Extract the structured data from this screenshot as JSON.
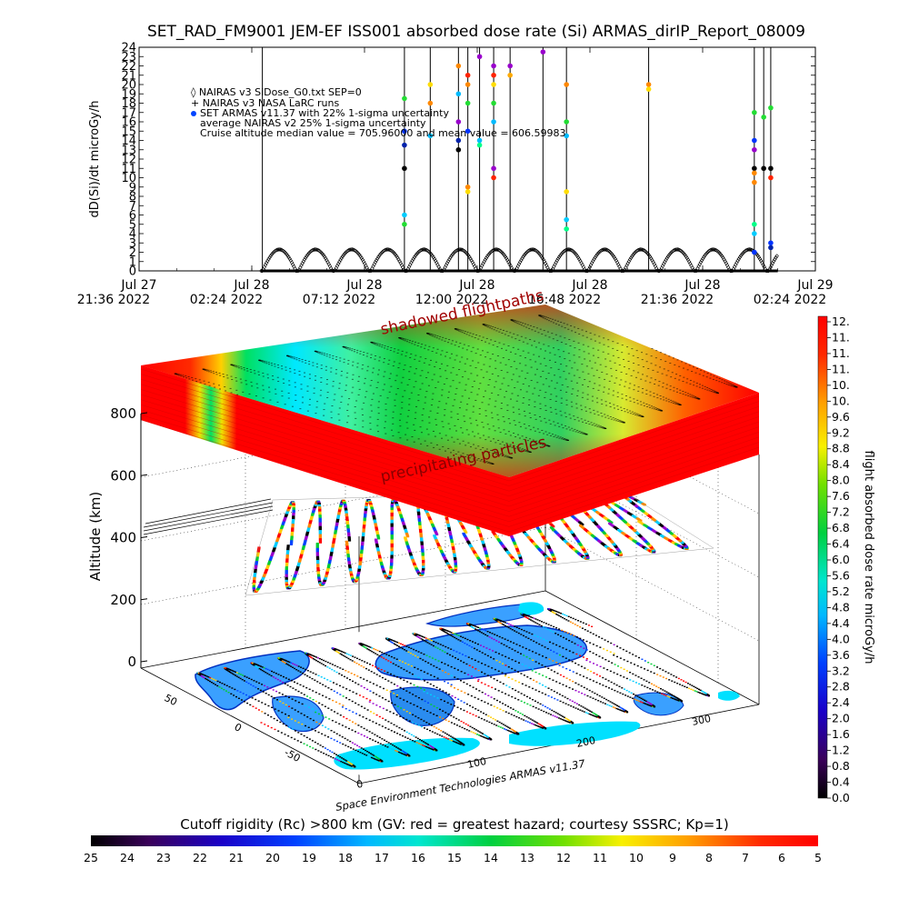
{
  "title": "SET_RAD_FM9001   JEM-EF ISS001 absorbed dose rate (Si) ARMAS_dirIP_Report_08009",
  "chart_data": [
    {
      "type": "scatter",
      "ylabel": "dD(Si)/dt microGy/h",
      "ylim": [
        0,
        24
      ],
      "yticks": [
        "0",
        "1",
        "2",
        "3",
        "4",
        "5",
        "6",
        "7",
        "8",
        "9",
        "10",
        "11",
        "12",
        "13",
        "14",
        "15",
        "16",
        "17",
        "18",
        "19",
        "20",
        "21",
        "22",
        "23",
        "24"
      ],
      "xticks": [
        {
          "line1": "Jul 27",
          "line2": "21:36 2022"
        },
        {
          "line1": "Jul 28",
          "line2": "02:24 2022"
        },
        {
          "line1": "Jul 28",
          "line2": "07:12 2022"
        },
        {
          "line1": "Jul 28",
          "line2": "12:00 2022"
        },
        {
          "line1": "Jul 28",
          "line2": "16:48 2022"
        },
        {
          "line1": "Jul 28",
          "line2": "21:36 2022"
        },
        {
          "line1": "Jul 29",
          "line2": "02:24 2022"
        }
      ],
      "legend": [
        "◊ NAIRAS v3 SiDose_G0.txt SEP=0",
        "+ NAIRAS v3 NASA LaRC runs",
        "SET ARMAS v11.37 with 22% 1-sigma uncertainty",
        "average NAIRAS v2 25% 1-sigma uncertainty",
        "Cruise altitude median value = 705.96000 and mean value = 606.59983"
      ],
      "legend_placement": "top-left",
      "background_series": {
        "x_start_hours": 5.2,
        "x_end_hours": 27.2,
        "period_hours": 1.54,
        "amplitude": 2.6
      },
      "spikes": [
        {
          "x": 5.25,
          "values": [
            24
          ],
          "colors": [
            "#000000"
          ]
        },
        {
          "x": 11.3,
          "values": [
            24,
            18.5,
            15,
            13.5,
            11,
            6,
            5
          ],
          "colors": [
            "#000000",
            "#22dd33",
            "#0033ff",
            "#0022aa",
            "#000000",
            "#00ccff",
            "#22dd33"
          ]
        },
        {
          "x": 12.4,
          "values": [
            24,
            20,
            18,
            14.5
          ],
          "colors": [
            "#000000",
            "#ffdd00",
            "#ff8800",
            "#00bbff"
          ]
        },
        {
          "x": 13.6,
          "values": [
            24,
            22,
            19,
            16,
            14,
            13
          ],
          "colors": [
            "#000000",
            "#ff8800",
            "#00bbff",
            "#9900cc",
            "#0022aa",
            "#000000"
          ]
        },
        {
          "x": 14.0,
          "values": [
            24,
            21,
            20,
            18,
            15,
            9,
            8.5
          ],
          "colors": [
            "#000000",
            "#ff2200",
            "#ff8800",
            "#22dd33",
            "#0033ff",
            "#ff8800",
            "#ffdd00"
          ]
        },
        {
          "x": 14.5,
          "values": [
            24,
            23,
            14,
            13.5
          ],
          "colors": [
            "#000000",
            "#9900cc",
            "#00bbff",
            "#00ff88"
          ]
        },
        {
          "x": 15.1,
          "values": [
            24,
            22,
            21,
            20,
            18,
            16,
            11,
            10
          ],
          "colors": [
            "#000000",
            "#9900cc",
            "#ff2200",
            "#ffdd00",
            "#22dd33",
            "#00bbff",
            "#9900cc",
            "#ff2200"
          ]
        },
        {
          "x": 15.8,
          "values": [
            24,
            22,
            21
          ],
          "colors": [
            "#000000",
            "#9900cc",
            "#ffaa00"
          ]
        },
        {
          "x": 17.2,
          "values": [
            24,
            23.5
          ],
          "colors": [
            "#000000",
            "#9900cc"
          ]
        },
        {
          "x": 18.2,
          "values": [
            24,
            20,
            16,
            14.5,
            8.5,
            5.5,
            4.5
          ],
          "colors": [
            "#000000",
            "#ff8800",
            "#22dd33",
            "#00bbff",
            "#ffdd00",
            "#00ccff",
            "#00ff88"
          ]
        },
        {
          "x": 21.7,
          "values": [
            24,
            20,
            19.5
          ],
          "colors": [
            "#000000",
            "#ff8800",
            "#ffdd00"
          ]
        },
        {
          "x": 26.2,
          "values": [
            24,
            17,
            14,
            13,
            11,
            10.5,
            9.5,
            5,
            4,
            2
          ],
          "colors": [
            "#000000",
            "#22dd33",
            "#0033ff",
            "#9900cc",
            "#000000",
            "#ff8800",
            "#ff8800",
            "#00ff88",
            "#00ccff",
            "#0033ff"
          ]
        },
        {
          "x": 26.6,
          "values": [
            24,
            16.5,
            11
          ],
          "colors": [
            "#000000",
            "#22dd33",
            "#000000"
          ]
        },
        {
          "x": 26.9,
          "values": [
            24,
            17.5,
            11,
            10,
            3,
            2.5
          ],
          "colors": [
            "#000000",
            "#22dd33",
            "#000000",
            "#ff2200",
            "#0033ff",
            "#0022aa"
          ]
        }
      ],
      "xlim_hours": [
        0,
        28.8
      ]
    },
    {
      "type": "heatmap",
      "zlabel": "Altitude (km)",
      "zticks": [
        "0",
        "200",
        "400",
        "600",
        "800"
      ],
      "lat_ticks": [
        "-50",
        "0",
        "50"
      ],
      "lon_ticks": [
        "0",
        "100",
        "200",
        "300"
      ],
      "annotations": [
        "shadowed flightpaths",
        "precipitating particles"
      ],
      "credit": "Space Environment Technologies ARMAS v11.37"
    },
    {
      "type": "colorbar",
      "title": "flight absorbed dose rate microGy/h",
      "ticks": [
        "0.0",
        "0.4",
        "0.8",
        "1.2",
        "1.6",
        "2.0",
        "2.4",
        "2.8",
        "3.2",
        "3.6",
        "4.0",
        "4.4",
        "4.8",
        "5.2",
        "5.6",
        "6.0",
        "6.4",
        "6.8",
        "7.2",
        "7.6",
        "8.0",
        "8.4",
        "8.8",
        "9.2",
        "9.6",
        "10.",
        "10.",
        "11.",
        "11.",
        "11.",
        "12."
      ]
    },
    {
      "type": "colorbar",
      "title": "Cutoff rigidity (Rc) >800 km (GV: red = greatest hazard; courtesy SSSRC; Kp=1)",
      "ticks": [
        "25",
        "24",
        "23",
        "22",
        "21",
        "20",
        "19",
        "18",
        "17",
        "16",
        "15",
        "14",
        "13",
        "12",
        "11",
        "10",
        "9",
        "8",
        "7",
        "6",
        "5"
      ]
    }
  ]
}
